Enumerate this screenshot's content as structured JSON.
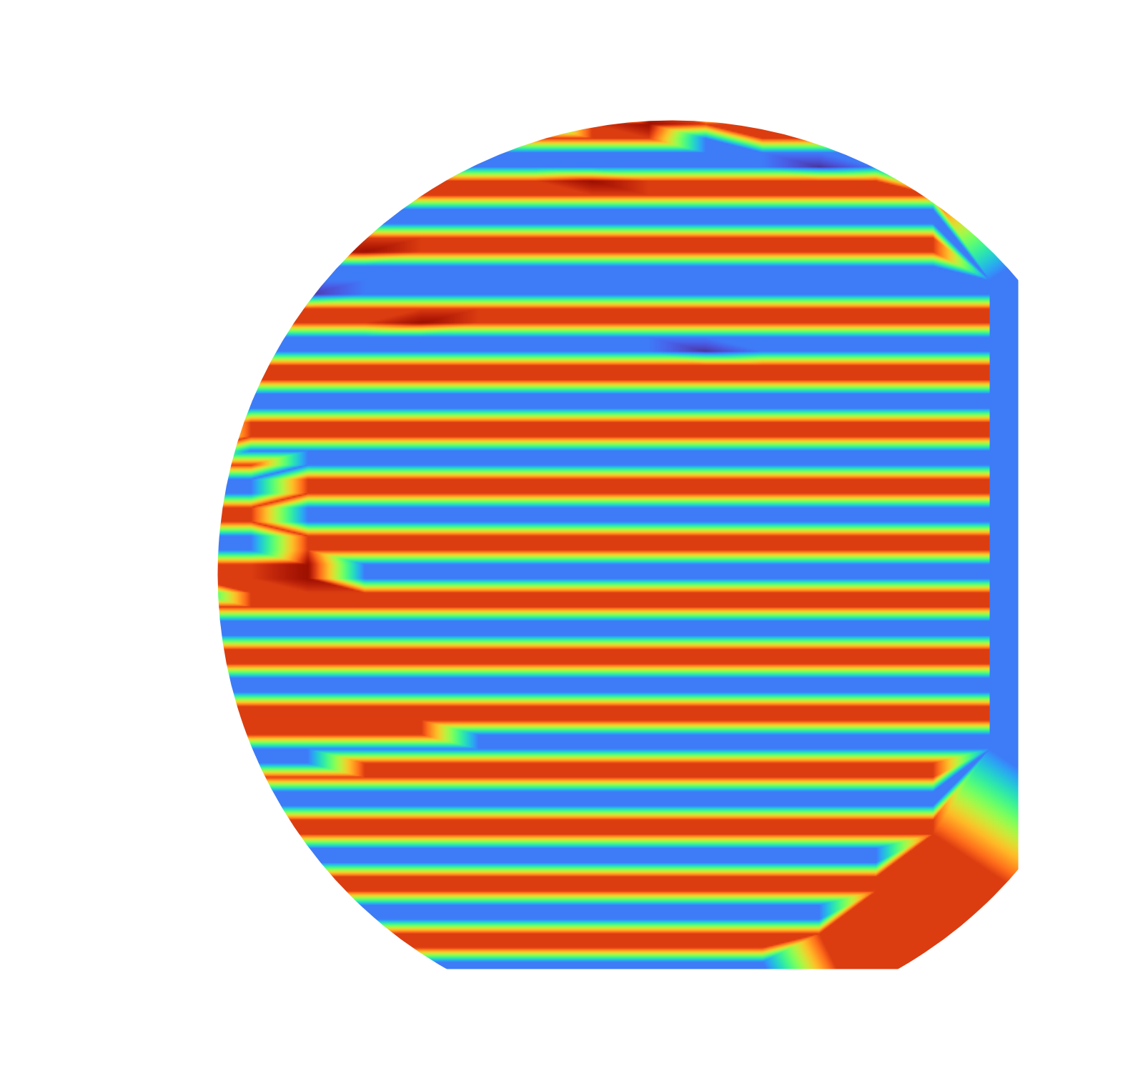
{
  "chart_data": {
    "type": "heatmap",
    "tick_labels": false,
    "zlim": [
      0,
      1
    ],
    "cells": [
      [
        null,
        null,
        null,
        null,
        0.85,
        0.15,
        0.85,
        0.95,
        0.85,
        0.85,
        0.15,
        0.85,
        null,
        null,
        null,
        null
      ],
      [
        null,
        null,
        null,
        null,
        0.85,
        0.85,
        0.15,
        0.85,
        0.85,
        0.15,
        0.85,
        0.85,
        null,
        null,
        null,
        null
      ],
      [
        null,
        null,
        null,
        0.15,
        0.15,
        0.05,
        0.15,
        0.15,
        0.15,
        0.15,
        0.15,
        0.15,
        0.15,
        null,
        null,
        null
      ],
      [
        null,
        null,
        null,
        0.15,
        0.15,
        0.15,
        0.15,
        0.05,
        0.15,
        0.85,
        0.15,
        0.15,
        0.15,
        null,
        null,
        null
      ],
      [
        null,
        null,
        null,
        0.85,
        0.85,
        0.85,
        0.85,
        0.15,
        0.85,
        0.95,
        0.85,
        0.85,
        0.15,
        null,
        null,
        null
      ],
      [
        null,
        null,
        0.85,
        0.85,
        0.85,
        0.85,
        0.85,
        0.85,
        0.85,
        0.85,
        0.15,
        0.85,
        0.85,
        0.85,
        null,
        null
      ],
      [
        null,
        null,
        0.15,
        0.15,
        0.15,
        0.15,
        0.15,
        0.15,
        0.15,
        0.15,
        0.15,
        0.15,
        0.15,
        0.15,
        null,
        null
      ],
      [
        null,
        null,
        0.15,
        0.15,
        0.15,
        0.05,
        0.15,
        0.15,
        0.15,
        0.15,
        0.15,
        0.15,
        0.05,
        0.15,
        null,
        null
      ],
      [
        null,
        null,
        0.85,
        0.85,
        0.85,
        0.85,
        0.85,
        0.85,
        0.95,
        0.85,
        0.85,
        0.85,
        0.85,
        0.85,
        null,
        null
      ],
      [
        null,
        0.85,
        0.85,
        0.85,
        0.85,
        0.85,
        0.85,
        0.85,
        0.85,
        0.85,
        0.85,
        0.85,
        0.85,
        0.85,
        0.85,
        null
      ],
      [
        null,
        0.15,
        0.15,
        0.15,
        0.15,
        0.15,
        0.15,
        0.15,
        0.15,
        0.15,
        0.15,
        0.15,
        0.15,
        0.15,
        0.15,
        null
      ],
      [
        null,
        0.15,
        0.05,
        0.15,
        0.15,
        0.15,
        0.15,
        0.15,
        0.15,
        0.15,
        0.15,
        0.15,
        0.15,
        0.15,
        0.15,
        null
      ],
      [
        null,
        0.85,
        0.85,
        0.85,
        0.85,
        0.85,
        0.85,
        0.85,
        0.85,
        0.85,
        0.85,
        0.85,
        0.85,
        0.85,
        0.85,
        null
      ],
      [
        null,
        0.85,
        0.85,
        0.85,
        0.95,
        0.85,
        0.85,
        0.85,
        0.85,
        0.85,
        0.85,
        0.85,
        0.85,
        0.85,
        0.85,
        null
      ],
      [
        null,
        0.15,
        0.15,
        0.15,
        0.15,
        0.15,
        0.15,
        0.15,
        0.15,
        0.15,
        0.15,
        0.15,
        0.15,
        0.15,
        0.15,
        null
      ],
      [
        0.15,
        0.15,
        0.15,
        0.15,
        0.15,
        0.15,
        0.15,
        0.15,
        0.15,
        0.15,
        0.15,
        0.15,
        0.15,
        0.15,
        0.15,
        0.15
      ],
      [
        0.15,
        0.15,
        0.15,
        0.05,
        0.15,
        0.15,
        0.15,
        0.15,
        0.15,
        0.15,
        0.15,
        0.15,
        0.15,
        0.15,
        0.15,
        0.15
      ],
      [
        0.85,
        0.85,
        0.85,
        0.85,
        0.85,
        0.85,
        0.85,
        0.85,
        0.85,
        0.85,
        0.85,
        0.85,
        0.85,
        0.85,
        0.85,
        0.85
      ],
      [
        0.85,
        0.85,
        0.85,
        0.85,
        0.85,
        0.95,
        0.85,
        0.85,
        0.85,
        0.85,
        0.85,
        0.85,
        0.85,
        0.85,
        0.85,
        0.85
      ],
      [
        0.15,
        0.15,
        0.15,
        0.15,
        0.15,
        0.15,
        0.15,
        0.15,
        0.15,
        0.15,
        0.15,
        0.15,
        0.15,
        0.15,
        0.15,
        0.15
      ],
      [
        0.15,
        0.15,
        0.15,
        0.15,
        0.15,
        0.15,
        0.15,
        0.15,
        0.15,
        0.15,
        0.05,
        0.15,
        0.15,
        0.15,
        0.15,
        0.15
      ],
      [
        0.85,
        0.85,
        0.85,
        0.85,
        0.85,
        0.85,
        0.85,
        0.85,
        0.85,
        0.85,
        0.85,
        0.85,
        0.85,
        0.85,
        0.85,
        0.85
      ],
      [
        0.15,
        0.15,
        0.85,
        0.85,
        0.85,
        0.85,
        0.85,
        0.85,
        0.85,
        0.85,
        0.85,
        0.85,
        0.85,
        0.85,
        0.85,
        0.85
      ],
      [
        0.85,
        0.85,
        0.15,
        0.15,
        0.15,
        0.15,
        0.15,
        0.15,
        0.15,
        0.15,
        0.15,
        0.15,
        0.15,
        0.15,
        0.15,
        0.15
      ],
      [
        0.85,
        0.85,
        0.15,
        0.15,
        0.15,
        0.15,
        0.15,
        0.15,
        0.15,
        0.15,
        0.15,
        0.15,
        0.15,
        0.15,
        0.15,
        0.15
      ],
      [
        0.15,
        0.15,
        0.85,
        0.85,
        0.85,
        0.85,
        0.85,
        0.85,
        0.85,
        0.85,
        0.85,
        0.85,
        0.85,
        0.85,
        0.85,
        0.85
      ],
      [
        0.15,
        0.15,
        0.85,
        0.85,
        0.85,
        0.85,
        0.85,
        0.85,
        0.85,
        0.85,
        0.85,
        0.85,
        0.85,
        0.85,
        0.85,
        0.85
      ],
      [
        0.85,
        0.85,
        0.15,
        0.15,
        0.15,
        0.15,
        0.15,
        0.15,
        0.15,
        0.15,
        0.15,
        0.15,
        0.15,
        0.15,
        0.15,
        0.15
      ],
      [
        0.85,
        0.85,
        0.85,
        0.15,
        0.15,
        0.15,
        0.15,
        0.15,
        0.15,
        0.15,
        0.15,
        0.15,
        0.15,
        0.15,
        0.15,
        0.15
      ],
      [
        0.15,
        0.15,
        0.15,
        0.85,
        0.85,
        0.85,
        0.85,
        0.85,
        0.85,
        0.85,
        0.85,
        0.85,
        0.85,
        0.85,
        0.85,
        0.85
      ],
      [
        0.15,
        0.15,
        0.15,
        0.85,
        0.85,
        0.85,
        0.85,
        0.85,
        0.85,
        0.85,
        0.85,
        0.85,
        0.85,
        0.85,
        0.85,
        0.85
      ],
      [
        0.85,
        0.85,
        0.85,
        0.15,
        0.15,
        0.15,
        0.15,
        0.15,
        0.15,
        0.15,
        0.15,
        0.15,
        0.15,
        0.15,
        0.15,
        0.15
      ],
      [
        0.85,
        0.85,
        0.85,
        0.15,
        0.15,
        0.15,
        0.15,
        0.15,
        0.15,
        0.15,
        0.15,
        0.15,
        0.15,
        0.15,
        0.15,
        0.15
      ],
      [
        0.15,
        0.15,
        0.15,
        0.85,
        0.85,
        0.85,
        0.85,
        0.85,
        0.85,
        0.85,
        0.85,
        0.85,
        0.85,
        0.85,
        0.85,
        0.85
      ],
      [
        0.15,
        0.15,
        0.15,
        0.85,
        0.85,
        0.85,
        0.85,
        0.85,
        0.85,
        0.85,
        0.85,
        0.85,
        0.85,
        0.85,
        0.85,
        0.85
      ],
      [
        0.85,
        0.85,
        0.85,
        0.95,
        0.15,
        0.15,
        0.15,
        0.15,
        0.15,
        0.15,
        0.15,
        0.15,
        0.15,
        0.15,
        0.15,
        0.15
      ],
      [
        0.85,
        0.85,
        0.85,
        0.95,
        0.15,
        0.15,
        0.15,
        0.15,
        0.15,
        0.15,
        0.15,
        0.15,
        0.15,
        0.15,
        0.15,
        0.15
      ],
      [
        0.15,
        0.15,
        0.85,
        0.85,
        0.85,
        0.85,
        0.85,
        0.85,
        0.85,
        0.85,
        0.85,
        0.85,
        0.85,
        0.85,
        0.85,
        0.85
      ],
      [
        0.85,
        0.85,
        0.85,
        0.85,
        0.85,
        0.85,
        0.85,
        0.85,
        0.85,
        0.85,
        0.85,
        0.85,
        0.85,
        0.85,
        0.85,
        0.85
      ],
      [
        0.15,
        0.15,
        0.15,
        0.15,
        0.15,
        0.15,
        0.15,
        0.15,
        0.15,
        0.15,
        0.15,
        0.15,
        0.15,
        0.15,
        0.15,
        0.15
      ],
      [
        0.15,
        0.15,
        0.15,
        0.15,
        0.15,
        0.15,
        0.15,
        0.15,
        0.15,
        0.15,
        0.15,
        0.15,
        0.15,
        0.15,
        0.15,
        0.15
      ],
      [
        0.85,
        0.85,
        0.85,
        0.85,
        0.85,
        0.85,
        0.85,
        0.85,
        0.85,
        0.85,
        0.85,
        0.85,
        0.85,
        0.85,
        0.85,
        0.85
      ],
      [
        0.85,
        0.85,
        0.85,
        0.85,
        0.85,
        0.85,
        0.85,
        0.85,
        0.85,
        0.85,
        0.85,
        0.85,
        0.85,
        0.85,
        0.85,
        0.85
      ],
      [
        0.15,
        0.15,
        0.15,
        0.15,
        0.15,
        0.15,
        0.15,
        0.15,
        0.15,
        0.15,
        0.15,
        0.15,
        0.15,
        0.15,
        0.15,
        0.15
      ],
      [
        0.15,
        0.15,
        0.15,
        0.15,
        0.15,
        0.15,
        0.15,
        0.15,
        0.15,
        0.15,
        0.15,
        0.15,
        0.15,
        0.15,
        0.15,
        0.15
      ],
      [
        0.85,
        0.85,
        0.85,
        0.85,
        0.85,
        0.85,
        0.85,
        0.85,
        0.85,
        0.85,
        0.85,
        0.85,
        0.85,
        0.85,
        0.85,
        0.85
      ],
      [
        0.85,
        0.85,
        0.85,
        0.85,
        0.85,
        0.85,
        0.85,
        0.85,
        0.85,
        0.85,
        0.85,
        0.85,
        0.85,
        0.85,
        0.85,
        0.85
      ],
      [
        0.15,
        0.85,
        0.85,
        0.85,
        0.85,
        0.85,
        0.15,
        0.15,
        0.15,
        0.15,
        0.15,
        0.15,
        0.15,
        0.15,
        0.15,
        0.15
      ],
      [
        0.15,
        0.15,
        0.15,
        0.15,
        0.15,
        0.15,
        0.15,
        0.15,
        0.15,
        0.15,
        0.15,
        0.15,
        0.15,
        0.15,
        0.15,
        0.15
      ],
      [
        null,
        0.15,
        0.15,
        0.15,
        0.85,
        0.85,
        0.85,
        0.85,
        0.85,
        0.85,
        0.85,
        0.85,
        0.85,
        0.85,
        0.85,
        null
      ],
      [
        null,
        0.85,
        0.85,
        0.85,
        0.85,
        0.85,
        0.85,
        0.85,
        0.85,
        0.85,
        0.85,
        0.85,
        0.85,
        0.85,
        0.85,
        null
      ],
      [
        null,
        0.15,
        0.15,
        0.15,
        0.15,
        0.15,
        0.15,
        0.15,
        0.15,
        0.15,
        0.15,
        0.15,
        0.15,
        0.15,
        0.15,
        null
      ],
      [
        null,
        0.15,
        0.15,
        0.15,
        0.15,
        0.15,
        0.15,
        0.15,
        0.15,
        0.15,
        0.15,
        0.15,
        0.15,
        0.15,
        0.15,
        null
      ],
      [
        null,
        0.85,
        0.85,
        0.85,
        0.85,
        0.85,
        0.85,
        0.85,
        0.85,
        0.85,
        0.85,
        0.85,
        0.85,
        0.85,
        0.85,
        null
      ],
      [
        null,
        0.85,
        0.85,
        0.85,
        0.85,
        0.85,
        0.85,
        0.85,
        0.85,
        0.85,
        0.85,
        0.85,
        0.85,
        0.85,
        0.85,
        null
      ],
      [
        null,
        null,
        0.15,
        0.15,
        0.15,
        0.15,
        0.15,
        0.15,
        0.15,
        0.15,
        0.15,
        0.15,
        0.15,
        0.15,
        null,
        null
      ],
      [
        null,
        null,
        0.15,
        0.15,
        0.15,
        0.15,
        0.15,
        0.15,
        0.15,
        0.15,
        0.15,
        0.15,
        0.15,
        0.15,
        null,
        null
      ],
      [
        null,
        null,
        0.85,
        0.85,
        0.85,
        0.85,
        0.85,
        0.85,
        0.85,
        0.85,
        0.85,
        0.85,
        0.85,
        0.85,
        null,
        null
      ],
      [
        null,
        null,
        0.85,
        0.85,
        0.85,
        0.85,
        0.85,
        0.85,
        0.85,
        0.85,
        0.85,
        0.85,
        0.85,
        0.85,
        null,
        null
      ],
      [
        null,
        null,
        null,
        0.15,
        0.15,
        0.15,
        0.15,
        0.15,
        0.15,
        0.15,
        0.15,
        0.15,
        0.15,
        null,
        null,
        null
      ],
      [
        null,
        null,
        null,
        0.15,
        0.15,
        0.15,
        0.15,
        0.15,
        0.15,
        0.15,
        0.15,
        0.15,
        0.15,
        null,
        null,
        null
      ],
      [
        null,
        null,
        null,
        0.85,
        0.85,
        0.85,
        0.85,
        0.85,
        0.85,
        0.85,
        0.85,
        0.85,
        0.85,
        null,
        null,
        null
      ],
      [
        null,
        null,
        null,
        null,
        0.85,
        0.85,
        0.85,
        0.85,
        0.85,
        0.85,
        0.85,
        0.85,
        null,
        null,
        null,
        null
      ],
      [
        null,
        null,
        null,
        null,
        0.15,
        0.15,
        0.15,
        0.15,
        0.15,
        0.15,
        0.15,
        0.15,
        null,
        null,
        null,
        null
      ]
    ]
  }
}
